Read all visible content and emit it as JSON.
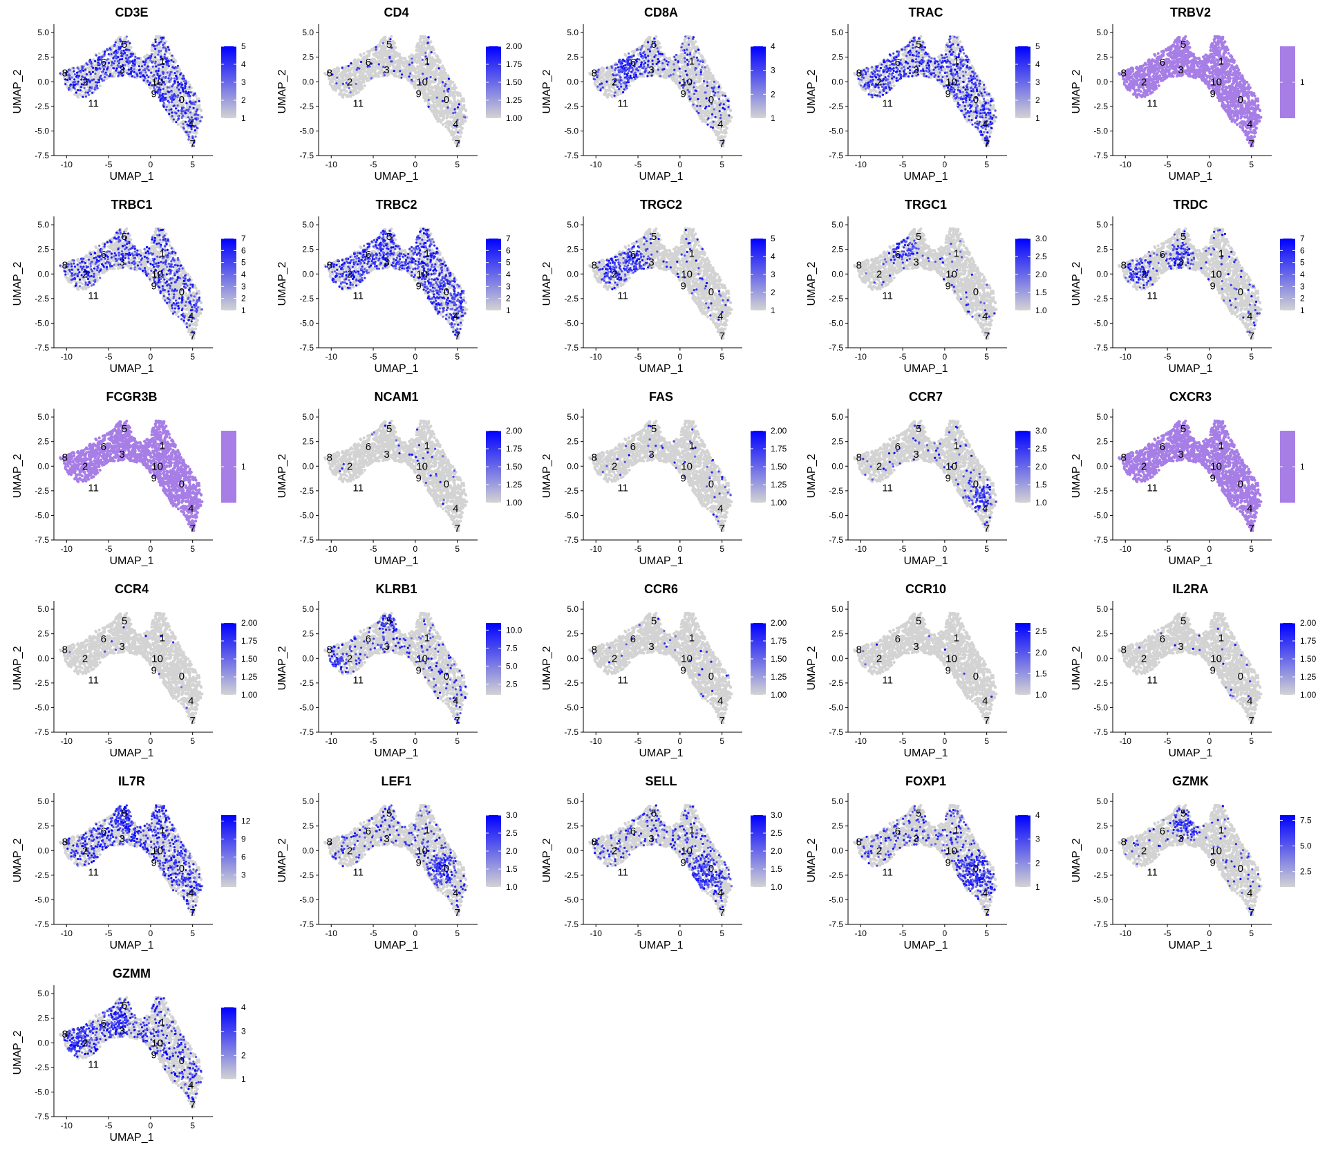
{
  "figure": {
    "panel_type": "scatter",
    "xlabel": "UMAP_1",
    "ylabel": "UMAP_2",
    "xlim": [
      -11.5,
      7
    ],
    "ylim": [
      -7.5,
      5.5
    ],
    "xticks": [
      -10,
      -5,
      0,
      5
    ],
    "yticks": [
      -7.5,
      -5.0,
      -2.5,
      0.0,
      2.5,
      5.0
    ],
    "ytick_labels": [
      "-7.5",
      "-5.0",
      "-2.5",
      "0.0",
      "2.5",
      "5.0"
    ],
    "xtick_labels": [
      "-10",
      "-5",
      "0",
      "5"
    ],
    "low_color": "#d3d3d3",
    "high_color": "#0000ff",
    "constant_color": "#a77ee6",
    "cluster_labels": [
      {
        "label": "8",
        "x": -10.2,
        "y": 0.9
      },
      {
        "label": "2",
        "x": -7.8,
        "y": 0.0
      },
      {
        "label": "6",
        "x": -5.6,
        "y": 2.0
      },
      {
        "label": "5",
        "x": -3.1,
        "y": 3.8
      },
      {
        "label": "3",
        "x": -3.4,
        "y": 1.2
      },
      {
        "label": "1",
        "x": 1.4,
        "y": 2.1
      },
      {
        "label": "10",
        "x": 0.8,
        "y": 0.0
      },
      {
        "label": "9",
        "x": 0.4,
        "y": -1.2
      },
      {
        "label": "0",
        "x": 3.7,
        "y": -1.8
      },
      {
        "label": "4",
        "x": 4.8,
        "y": -4.3
      },
      {
        "label": "7",
        "x": 5.0,
        "y": -6.3
      },
      {
        "label": "11",
        "x": -6.8,
        "y": -2.2
      }
    ]
  },
  "chart_data": [
    {
      "type": "scatter",
      "title": "CD3E",
      "legend_ticks": [
        "5",
        "4",
        "3",
        "2",
        "1"
      ],
      "vmin": 1,
      "vmax": 5,
      "density": 0.4,
      "hot": []
    },
    {
      "type": "scatter",
      "title": "CD4",
      "legend_ticks": [
        "2.00",
        "1.75",
        "1.50",
        "1.25",
        "1.00"
      ],
      "vmin": 1,
      "vmax": 2,
      "density": 0.05,
      "hot": []
    },
    {
      "type": "scatter",
      "title": "CD8A",
      "legend_ticks": [
        "4",
        "3",
        "2",
        "1"
      ],
      "vmin": 1,
      "vmax": 4,
      "density": 0.12,
      "hot": [
        [
          -6,
          1.5,
          3
        ]
      ]
    },
    {
      "type": "scatter",
      "title": "TRAC",
      "legend_ticks": [
        "5",
        "4",
        "3",
        "2",
        "1"
      ],
      "vmin": 1,
      "vmax": 5,
      "density": 0.4,
      "hot": []
    },
    {
      "type": "scatter",
      "title": "TRBV2",
      "legend_ticks": [
        "1"
      ],
      "vmin": 1,
      "vmax": 1,
      "density": 1.0,
      "constant": true,
      "hot": []
    },
    {
      "type": "scatter",
      "title": "TRBC1",
      "legend_ticks": [
        "7",
        "6",
        "5",
        "4",
        "3",
        "2",
        "1"
      ],
      "vmin": 1,
      "vmax": 7,
      "density": 0.3,
      "hot": []
    },
    {
      "type": "scatter",
      "title": "TRBC2",
      "legend_ticks": [
        "7",
        "6",
        "5",
        "4",
        "3",
        "2",
        "1"
      ],
      "vmin": 1,
      "vmax": 7,
      "density": 0.45,
      "hot": []
    },
    {
      "type": "scatter",
      "title": "TRGC2",
      "legend_ticks": [
        "5",
        "4",
        "3",
        "2",
        "1"
      ],
      "vmin": 1,
      "vmax": 5,
      "density": 0.04,
      "hot": [
        [
          -5.5,
          1.0,
          2.5
        ],
        [
          -8,
          0.5,
          2
        ]
      ]
    },
    {
      "type": "scatter",
      "title": "TRGC1",
      "legend_ticks": [
        "3.0",
        "2.5",
        "2.0",
        "1.5",
        "1.0"
      ],
      "vmin": 1,
      "vmax": 3,
      "density": 0.03,
      "hot": [
        [
          -5,
          2.5,
          2
        ]
      ]
    },
    {
      "type": "scatter",
      "title": "TRDC",
      "legend_ticks": [
        "7",
        "6",
        "5",
        "4",
        "3",
        "2",
        "1"
      ],
      "vmin": 1,
      "vmax": 7,
      "density": 0.04,
      "hot": [
        [
          -3.5,
          1.5,
          2
        ],
        [
          -8.5,
          0.2,
          2
        ]
      ]
    },
    {
      "type": "scatter",
      "title": "FCGR3B",
      "legend_ticks": [
        "1"
      ],
      "vmin": 1,
      "vmax": 1,
      "density": 1.0,
      "constant": true,
      "hot": []
    },
    {
      "type": "scatter",
      "title": "NCAM1",
      "legend_ticks": [
        "2.00",
        "1.75",
        "1.50",
        "1.25",
        "1.00"
      ],
      "vmin": 1,
      "vmax": 2,
      "density": 0.02,
      "hot": []
    },
    {
      "type": "scatter",
      "title": "FAS",
      "legend_ticks": [
        "2.00",
        "1.75",
        "1.50",
        "1.25",
        "1.00"
      ],
      "vmin": 1,
      "vmax": 2,
      "density": 0.03,
      "hot": []
    },
    {
      "type": "scatter",
      "title": "CCR7",
      "legend_ticks": [
        "3.0",
        "2.5",
        "2.0",
        "1.5",
        "1.0"
      ],
      "vmin": 1,
      "vmax": 3,
      "density": 0.04,
      "hot": [
        [
          4,
          -3,
          2
        ]
      ]
    },
    {
      "type": "scatter",
      "title": "CXCR3",
      "legend_ticks": [
        "1"
      ],
      "vmin": 1,
      "vmax": 1,
      "density": 1.0,
      "constant": true,
      "hot": []
    },
    {
      "type": "scatter",
      "title": "CCR4",
      "legend_ticks": [
        "2.00",
        "1.75",
        "1.50",
        "1.25",
        "1.00"
      ],
      "vmin": 1,
      "vmax": 2,
      "density": 0.005,
      "hot": []
    },
    {
      "type": "scatter",
      "title": "KLRB1",
      "legend_ticks": [
        "10.0",
        "7.5",
        "5.0",
        "2.5"
      ],
      "vmin": 1,
      "vmax": 11,
      "density": 0.1,
      "hot": [
        [
          -3,
          3.8,
          1.5
        ],
        [
          -9.5,
          -0.5,
          2
        ]
      ]
    },
    {
      "type": "scatter",
      "title": "CCR6",
      "legend_ticks": [
        "2.00",
        "1.75",
        "1.50",
        "1.25",
        "1.00"
      ],
      "vmin": 1,
      "vmax": 2,
      "density": 0.02,
      "hot": []
    },
    {
      "type": "scatter",
      "title": "CCR10",
      "legend_ticks": [
        "2.5",
        "2.0",
        "1.5",
        "1.0"
      ],
      "vmin": 1,
      "vmax": 2.7,
      "density": 0.01,
      "hot": []
    },
    {
      "type": "scatter",
      "title": "IL2RA",
      "legend_ticks": [
        "2.00",
        "1.75",
        "1.50",
        "1.25",
        "1.00"
      ],
      "vmin": 1,
      "vmax": 2,
      "density": 0.01,
      "hot": []
    },
    {
      "type": "scatter",
      "title": "IL7R",
      "legend_ticks": [
        "12",
        "9",
        "6",
        "3"
      ],
      "vmin": 1,
      "vmax": 13,
      "density": 0.35,
      "hot": [
        [
          -3,
          3.5,
          2
        ]
      ]
    },
    {
      "type": "scatter",
      "title": "LEF1",
      "legend_ticks": [
        "3.0",
        "2.5",
        "2.0",
        "1.5",
        "1.0"
      ],
      "vmin": 1,
      "vmax": 3,
      "density": 0.12,
      "hot": [
        [
          3,
          -2,
          2
        ]
      ]
    },
    {
      "type": "scatter",
      "title": "SELL",
      "legend_ticks": [
        "3.0",
        "2.5",
        "2.0",
        "1.5",
        "1.0"
      ],
      "vmin": 1,
      "vmax": 3,
      "density": 0.15,
      "hot": [
        [
          3,
          -2.5,
          2.5
        ]
      ]
    },
    {
      "type": "scatter",
      "title": "FOXP1",
      "legend_ticks": [
        "4",
        "3",
        "2",
        "1"
      ],
      "vmin": 1,
      "vmax": 4,
      "density": 0.15,
      "hot": [
        [
          3.5,
          -2.5,
          2.5
        ]
      ]
    },
    {
      "type": "scatter",
      "title": "GZMK",
      "legend_ticks": [
        "7.5",
        "5.0",
        "2.5"
      ],
      "vmin": 1,
      "vmax": 8,
      "density": 0.04,
      "hot": [
        [
          -3,
          2.5,
          2
        ]
      ]
    },
    {
      "type": "scatter",
      "title": "GZMM",
      "legend_ticks": [
        "4",
        "3",
        "2",
        "1"
      ],
      "vmin": 1,
      "vmax": 4,
      "density": 0.2,
      "hot": [
        [
          -8.5,
          0.5,
          2.5
        ],
        [
          -4,
          2,
          2
        ]
      ]
    }
  ]
}
